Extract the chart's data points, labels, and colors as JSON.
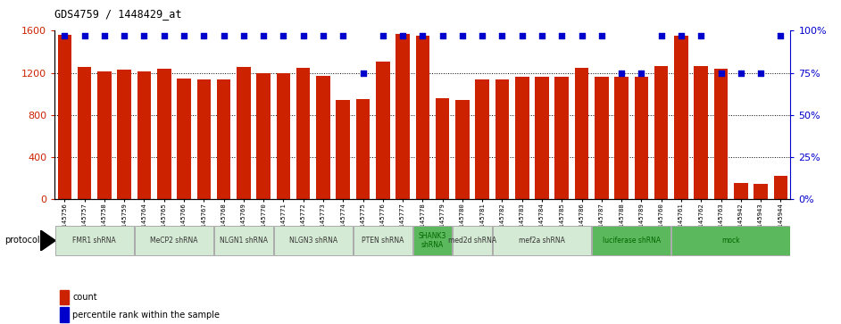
{
  "title": "GDS4759 / 1448429_at",
  "samples": [
    "GSM1145756",
    "GSM1145757",
    "GSM1145758",
    "GSM1145759",
    "GSM1145764",
    "GSM1145765",
    "GSM1145766",
    "GSM1145767",
    "GSM1145768",
    "GSM1145769",
    "GSM1145770",
    "GSM1145771",
    "GSM1145772",
    "GSM1145773",
    "GSM1145774",
    "GSM1145775",
    "GSM1145776",
    "GSM1145777",
    "GSM1145778",
    "GSM1145779",
    "GSM1145780",
    "GSM1145781",
    "GSM1145782",
    "GSM1145783",
    "GSM1145784",
    "GSM1145785",
    "GSM1145786",
    "GSM1145787",
    "GSM1145788",
    "GSM1145789",
    "GSM1145760",
    "GSM1145761",
    "GSM1145762",
    "GSM1145763",
    "GSM1145942",
    "GSM1145943",
    "GSM1145944"
  ],
  "counts": [
    1560,
    1260,
    1210,
    1230,
    1210,
    1240,
    1150,
    1140,
    1140,
    1260,
    1200,
    1200,
    1250,
    1170,
    940,
    950,
    1310,
    1570,
    1555,
    960,
    940,
    1140,
    1140,
    1165,
    1160,
    1160,
    1250,
    1160,
    1160,
    1160,
    1265,
    1555,
    1265,
    1240,
    155,
    150,
    220
  ],
  "percentiles": [
    97,
    97,
    97,
    97,
    97,
    97,
    97,
    97,
    97,
    97,
    97,
    97,
    97,
    97,
    97,
    75,
    97,
    97,
    97,
    97,
    97,
    97,
    97,
    97,
    97,
    97,
    97,
    97,
    75,
    75,
    97,
    97,
    97,
    75,
    75,
    75,
    97
  ],
  "groups": [
    {
      "label": "FMR1 shRNA",
      "start": 0,
      "end": 4,
      "color": "#d5ead4"
    },
    {
      "label": "MeCP2 shRNA",
      "start": 4,
      "end": 8,
      "color": "#d5ead4"
    },
    {
      "label": "NLGN1 shRNA",
      "start": 8,
      "end": 11,
      "color": "#d5ead4"
    },
    {
      "label": "NLGN3 shRNA",
      "start": 11,
      "end": 15,
      "color": "#d5ead4"
    },
    {
      "label": "PTEN shRNA",
      "start": 15,
      "end": 18,
      "color": "#d5ead4"
    },
    {
      "label": "SHANK3\nshRNA",
      "start": 18,
      "end": 20,
      "color": "#5cb85c"
    },
    {
      "label": "med2d shRNA",
      "start": 20,
      "end": 22,
      "color": "#d5ead4"
    },
    {
      "label": "mef2a shRNA",
      "start": 22,
      "end": 27,
      "color": "#d5ead4"
    },
    {
      "label": "luciferase shRNA",
      "start": 27,
      "end": 31,
      "color": "#5cb85c"
    },
    {
      "label": "mock",
      "start": 31,
      "end": 37,
      "color": "#5cb85c"
    }
  ],
  "bar_color": "#cc2200",
  "dot_color": "#0000cc",
  "ylim_left": [
    0,
    1600
  ],
  "ylim_right": [
    0,
    100
  ],
  "yticks_left": [
    0,
    400,
    800,
    1200,
    1600
  ],
  "yticks_right": [
    0,
    25,
    50,
    75,
    100
  ],
  "background_color": "#ffffff"
}
